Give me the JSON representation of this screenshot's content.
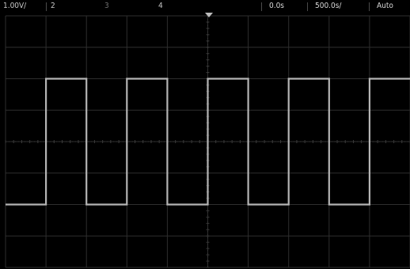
{
  "status_bar": {
    "channel_scale": "1.00V/",
    "channel_2": "2",
    "channel_3": "3",
    "channel_4": "4",
    "time_delay": "0.0s",
    "time_base": "500.0s/",
    "trigger_mode": "Auto"
  },
  "colors": {
    "background": "#000000",
    "grid": "#2e2e2e",
    "grid_center": "#3a3a3a",
    "waveform": "#b4b4b4",
    "text": "#d8d8d8"
  },
  "waveform": {
    "type": "square",
    "high_level_volts": 2.0,
    "low_level_volts": -2.0,
    "rising_edges_divisions": [
      1.0,
      3.0,
      5.0,
      7.0,
      9.0
    ],
    "falling_edges_divisions": [
      2.0,
      4.0,
      6.0,
      8.0
    ],
    "starts_at": "low"
  },
  "grid": {
    "horizontal_divisions": 10,
    "vertical_divisions": 8,
    "minor_ticks_per_division": 5
  }
}
